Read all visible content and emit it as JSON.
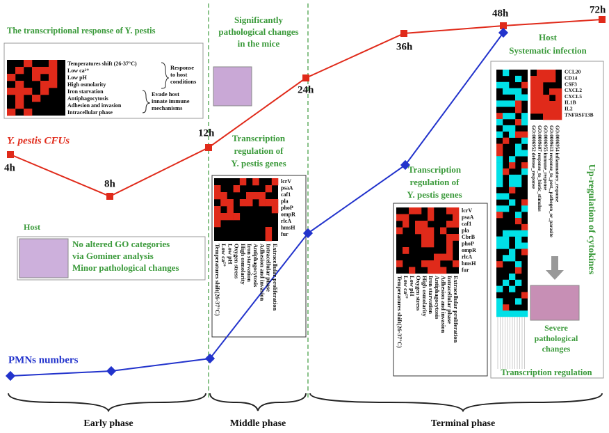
{
  "header": {
    "title": "The transcriptional response of Y. pestis"
  },
  "early_heatmap": {
    "rows": [
      "Temperatures shift (26-37°C)",
      "Low ca²⁺",
      "Low pH",
      "High osmolarity",
      "Iron starvation",
      "Antiphagocytosis",
      "Adhesion and invasion",
      "Intracellular phase"
    ],
    "groups": [
      [
        "Response",
        "to host",
        "conditions"
      ],
      [
        "Evade host",
        "innate immune",
        "mechanisms"
      ]
    ]
  },
  "middle_note": [
    "Significantly",
    "pathological changes",
    "in the mice"
  ],
  "curves": {
    "cfu": "Y. pestis CFUs",
    "pmn": "PMNs numbers",
    "times": [
      "4h",
      "8h",
      "12h",
      "24h",
      "36h",
      "48h",
      "72h"
    ]
  },
  "middle_heatmap": {
    "title": [
      "Transcription",
      "regulation of",
      "Y. pestis genes"
    ],
    "genes": [
      "lcrV",
      "psaA",
      "caf1",
      "pla",
      "phoP",
      "ompR",
      "rlcA",
      "hmsH",
      "fur"
    ],
    "conditions": [
      "Temperatures shift(26-37°C)",
      "Low ca²⁺",
      "Low pH",
      "Oxygen stress",
      "High osmolarity",
      "Iron starvation",
      "Antiphagocytosis",
      "Adhesion and invasion",
      "Intracellular phase",
      "Extracellular proliferation"
    ]
  },
  "terminal_heatmap": {
    "title": [
      "Transcription",
      "regulation of",
      "Y. pestis genes"
    ],
    "genes": [
      "lcrV",
      "psaA",
      "caf1",
      "pla",
      "CbrB",
      "phoP",
      "ompR",
      "rlcA",
      "hmsH",
      "fur"
    ],
    "conditions": [
      "Temperatures shift(26-37°C)",
      "Low ca²⁺",
      "Low pH",
      "Oxygen stress",
      "High osmolarity",
      "Iron starvation",
      "Antiphagocytosis",
      "Adhesion and invasion",
      "Intracellular phase",
      "Extracellular proliferation"
    ]
  },
  "host_early": {
    "title": "Host",
    "lines": [
      "No altered GO categories",
      "via Gominer analysis",
      "Minor pathological changes"
    ]
  },
  "host_terminal": {
    "title": [
      "Host",
      "Systematic infection"
    ],
    "cytokines": [
      "CCL20",
      "CD14",
      "CSF3",
      "CXCL2",
      "CXCL5",
      "IL1B",
      "IL2",
      "TNFRSF13B"
    ],
    "go_terms": [
      "GO:0006952 defense_response",
      "GO:0009607 response_to_biotic_stimulus",
      "GO:0006955 immune_response",
      "GO:0009613 response_to_pest,_pathogen_or_parasite",
      "GO:0006954 inflammatory_response"
    ],
    "side": "Up-regulation of cytokines",
    "pathology": [
      "Severe",
      "pathological",
      "changes"
    ],
    "caption": "Transcription regulation"
  },
  "phases": [
    "Early phase",
    "Middle phase",
    "Terminal phase"
  ]
}
